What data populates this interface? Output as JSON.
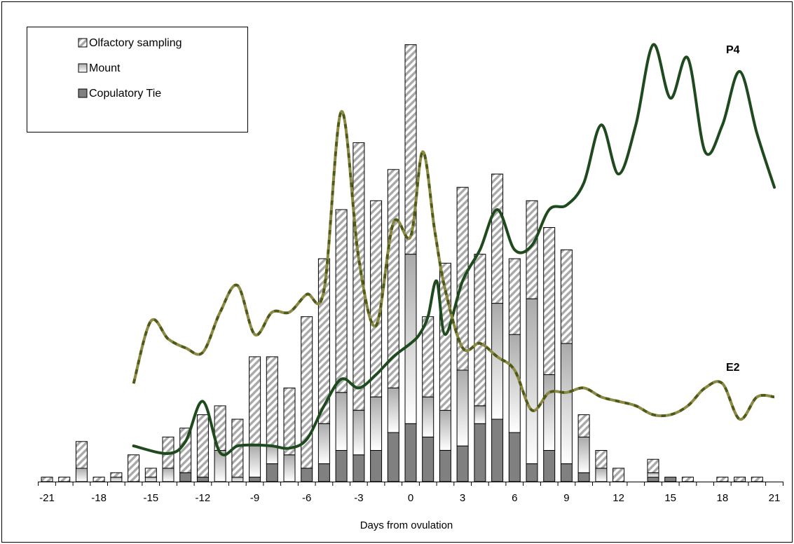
{
  "chart_data": {
    "type": "bar",
    "stacked": true,
    "xlabel": "Days from ovulation",
    "ylabel": "",
    "x_ticks": [
      -21,
      -18,
      -15,
      -12,
      -9,
      -6,
      -3,
      0,
      3,
      6,
      9,
      12,
      15,
      18,
      21
    ],
    "x_range": [
      -21.5,
      21.5
    ],
    "y_range": [
      0,
      100
    ],
    "legend_position": "top-left",
    "grid": false,
    "colors": {
      "copulatory_tie": "#808080",
      "hatch_stripe": "#a9a9a9",
      "mount_light": "#ffffff",
      "mount_dark": "#aaaaaa",
      "p4_line": "#1e4a1e",
      "e2_dash_a": "#4f5a18",
      "e2_dash_b": "#8c8a42",
      "axis": "#000000"
    },
    "days": [
      -21,
      -20,
      -19,
      -18,
      -17,
      -16,
      -15,
      -14,
      -13,
      -12,
      -11,
      -10,
      -9,
      -8,
      -7,
      -6,
      -5,
      -4,
      -3,
      -2,
      -1,
      0,
      1,
      2,
      3,
      4,
      5,
      6,
      7,
      8,
      9,
      10,
      11,
      12,
      13,
      14,
      15,
      16,
      17,
      18,
      19,
      20
    ],
    "series": [
      {
        "name": "Copulatory Tie",
        "pattern": "solid",
        "values": [
          0,
          0,
          0,
          0,
          0,
          0,
          0,
          0,
          2,
          1,
          0,
          0,
          1,
          4,
          0,
          3,
          4,
          7,
          6,
          7,
          11,
          13,
          10,
          7,
          8,
          13,
          14,
          11,
          4,
          7,
          4,
          2,
          0,
          0,
          0,
          1,
          1,
          0,
          0,
          0,
          0,
          0
        ]
      },
      {
        "name": "Mount",
        "pattern": "gradient",
        "values": [
          0,
          0,
          3,
          0,
          1,
          0,
          1,
          3,
          0,
          0,
          7,
          1,
          7,
          4,
          6,
          0,
          9,
          13,
          10,
          12,
          10,
          38,
          9,
          9,
          17,
          4,
          26,
          22,
          37,
          17,
          27,
          8,
          3,
          0,
          0,
          1,
          0,
          0,
          0,
          0,
          0,
          0
        ]
      },
      {
        "name": "Olfactory sampling",
        "pattern": "hatch",
        "values": [
          1,
          1,
          6,
          1,
          1,
          6,
          2,
          7,
          10,
          14,
          10,
          13,
          20,
          20,
          15,
          34,
          37,
          41,
          60,
          44,
          49,
          47,
          18,
          33,
          41,
          34,
          29,
          17,
          22,
          33,
          21,
          5,
          4,
          3,
          0,
          3,
          0,
          1,
          0,
          1,
          1,
          1
        ]
      }
    ],
    "line_series": [
      {
        "name": "P4",
        "style": "solid",
        "points": [
          [
            -16,
            8
          ],
          [
            -14,
            6.3
          ],
          [
            -13,
            9
          ],
          [
            -12,
            18
          ],
          [
            -11,
            6.5
          ],
          [
            -10,
            8
          ],
          [
            -9,
            8.2
          ],
          [
            -8,
            8
          ],
          [
            -7,
            7.5
          ],
          [
            -6,
            9.5
          ],
          [
            -5,
            17
          ],
          [
            -4,
            23
          ],
          [
            -3,
            21
          ],
          [
            -2,
            24
          ],
          [
            -1,
            28
          ],
          [
            0,
            31
          ],
          [
            0.5,
            33
          ],
          [
            1,
            37
          ],
          [
            1.5,
            45
          ],
          [
            2,
            33
          ],
          [
            3,
            45
          ],
          [
            4,
            52
          ],
          [
            5,
            61
          ],
          [
            6,
            52
          ],
          [
            7,
            53
          ],
          [
            8,
            61
          ],
          [
            9,
            62
          ],
          [
            10,
            67
          ],
          [
            11,
            80
          ],
          [
            12,
            69
          ],
          [
            13,
            80
          ],
          [
            14,
            98
          ],
          [
            15,
            86
          ],
          [
            16,
            95
          ],
          [
            17,
            74
          ],
          [
            18,
            80
          ],
          [
            19,
            92
          ],
          [
            20,
            78
          ],
          [
            21,
            66
          ]
        ]
      },
      {
        "name": "E2",
        "style": "dashed",
        "points": [
          [
            -16,
            22
          ],
          [
            -15,
            36
          ],
          [
            -14,
            32
          ],
          [
            -13,
            30
          ],
          [
            -12,
            29
          ],
          [
            -11,
            38
          ],
          [
            -10,
            44
          ],
          [
            -9,
            33
          ],
          [
            -8,
            38
          ],
          [
            -7,
            38
          ],
          [
            -6,
            42
          ],
          [
            -5,
            43
          ],
          [
            -4,
            83
          ],
          [
            -3,
            50
          ],
          [
            -2,
            35
          ],
          [
            -1,
            58
          ],
          [
            0,
            55
          ],
          [
            0.7,
            74
          ],
          [
            1.4,
            56
          ],
          [
            2,
            43
          ],
          [
            3,
            30
          ],
          [
            4,
            31
          ],
          [
            5,
            28
          ],
          [
            6,
            25
          ],
          [
            7,
            16
          ],
          [
            8,
            20
          ],
          [
            9,
            20
          ],
          [
            10,
            21
          ],
          [
            11,
            19
          ],
          [
            12,
            18
          ],
          [
            13,
            17
          ],
          [
            14,
            15
          ],
          [
            15,
            15
          ],
          [
            16,
            17
          ],
          [
            17,
            21
          ],
          [
            18,
            22
          ],
          [
            19,
            14
          ],
          [
            20,
            19
          ],
          [
            21,
            19
          ]
        ]
      }
    ],
    "legend": [
      "Olfactory sampling",
      "Mount",
      "Copulatory Tie"
    ],
    "annotations": [
      "P4",
      "E2"
    ]
  }
}
